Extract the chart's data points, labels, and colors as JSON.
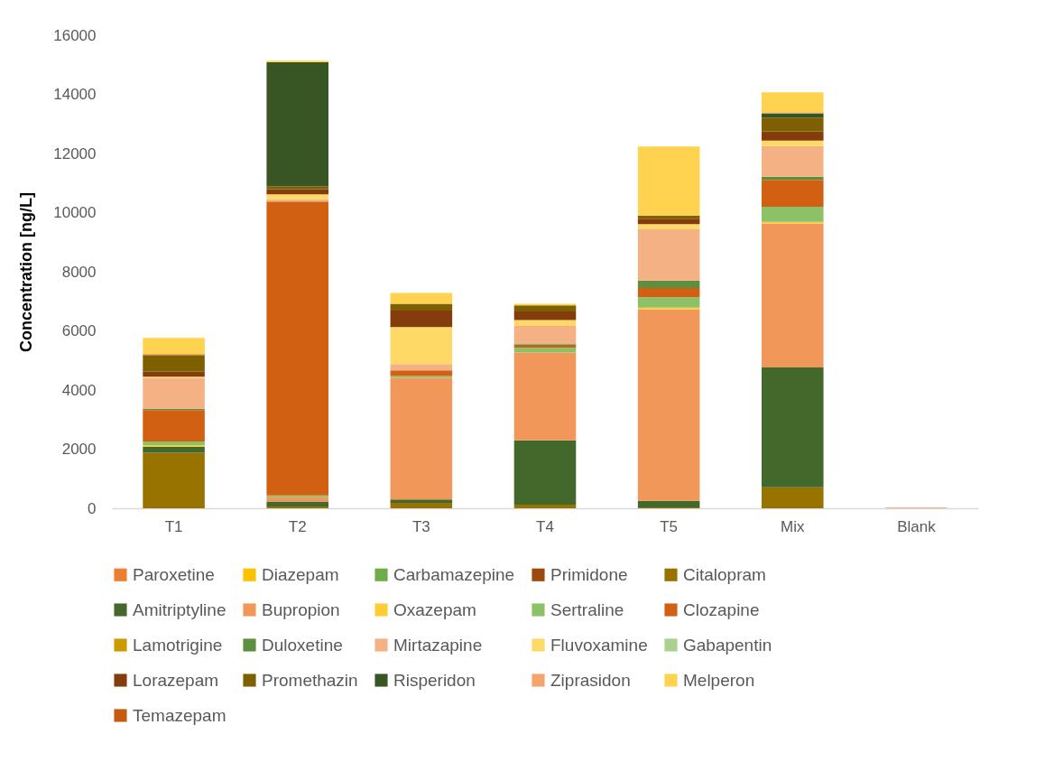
{
  "chart_data": {
    "type": "bar",
    "stacked": true,
    "ylabel": "Concentration [ng/L]",
    "categories": [
      "T1",
      "T2",
      "T3",
      "T4",
      "T5",
      "Mix",
      "Blank"
    ],
    "ylim": [
      0,
      16000
    ],
    "yticks": [
      0,
      2000,
      4000,
      6000,
      8000,
      10000,
      12000,
      14000,
      16000
    ],
    "grid": false,
    "legend": "bottom",
    "series": [
      {
        "name": "Paroxetine",
        "color": "#ed7d31",
        "values": [
          null,
          null,
          null,
          null,
          null,
          null,
          null
        ]
      },
      {
        "name": "Diazepam",
        "color": "#ffc000",
        "values": [
          null,
          null,
          null,
          null,
          null,
          null,
          null
        ]
      },
      {
        "name": "Carbamazepine",
        "color": "#70ad47",
        "values": [
          null,
          null,
          null,
          null,
          null,
          null,
          null
        ]
      },
      {
        "name": "Primidone",
        "color": "#9e480e",
        "values": [
          null,
          null,
          null,
          null,
          null,
          null,
          null
        ]
      },
      {
        "name": "Citalopram",
        "color": "#997300",
        "values": [
          1880,
          60,
          180,
          120,
          30,
          710,
          null
        ]
      },
      {
        "name": "Amitriptyline",
        "color": "#43682b",
        "values": [
          200,
          170,
          120,
          2180,
          225,
          4050,
          null
        ]
      },
      {
        "name": "Bupropion",
        "color": "#f1975a",
        "values": [
          null,
          145,
          4110,
          2970,
          6470,
          4875,
          null
        ]
      },
      {
        "name": "Oxazepam",
        "color": "#ffcd33",
        "values": [
          50,
          null,
          null,
          null,
          60,
          50,
          null
        ]
      },
      {
        "name": "Sertraline",
        "color": "#8cc168",
        "values": [
          130,
          60,
          60,
          160,
          350,
          510,
          null
        ]
      },
      {
        "name": "Clozapine",
        "color": "#d26012",
        "values": [
          1060,
          9940,
          195,
          70,
          315,
          915,
          null
        ]
      },
      {
        "name": "Lamotrigine",
        "color": "#cc9a00",
        "values": [
          null,
          null,
          null,
          null,
          null,
          null,
          null
        ]
      },
      {
        "name": "Duloxetine",
        "color": "#5f8f3e",
        "values": [
          50,
          null,
          null,
          50,
          255,
          100,
          null
        ]
      },
      {
        "name": "Mirtazapine",
        "color": "#f4b183",
        "values": [
          1040,
          75,
          215,
          620,
          1730,
          1040,
          30
        ]
      },
      {
        "name": "Fluvoxamine",
        "color": "#ffd966",
        "values": [
          40,
          165,
          1250,
          195,
          175,
          185,
          null
        ]
      },
      {
        "name": "Gabapentin",
        "color": "#a9d18e",
        "values": [
          null,
          null,
          null,
          null,
          null,
          null,
          null
        ]
      },
      {
        "name": "Lorazepam",
        "color": "#843c0c",
        "values": [
          170,
          180,
          560,
          295,
          185,
          315,
          null
        ]
      },
      {
        "name": "Promethazin",
        "color": "#7f6000",
        "values": [
          560,
          90,
          225,
          205,
          100,
          460,
          null
        ]
      },
      {
        "name": "Risperidon",
        "color": "#375623",
        "values": [
          null,
          4200,
          null,
          null,
          null,
          150,
          null
        ]
      },
      {
        "name": "Ziprasidon",
        "color": "#f4a46c",
        "values": [
          40,
          null,
          null,
          null,
          null,
          40,
          null
        ]
      },
      {
        "name": "Melperon",
        "color": "#ffd34f",
        "values": [
          540,
          55,
          370,
          50,
          2340,
          670,
          null
        ]
      },
      {
        "name": "Temazepam",
        "color": "#c55a11",
        "values": [
          null,
          null,
          null,
          null,
          null,
          null,
          null
        ]
      }
    ]
  }
}
